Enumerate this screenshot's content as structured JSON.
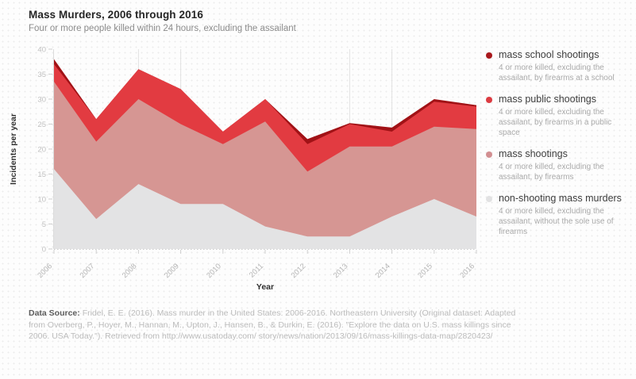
{
  "header": {
    "title": "Mass Murders, 2006 through 2016",
    "subtitle": "Four or more people killed within 24 hours, excluding the assailant"
  },
  "chart_data": {
    "type": "area",
    "stacked": true,
    "title": "Mass Murders, 2006 through 2016",
    "subtitle": "Four or more people killed within 24 hours, excluding the assailant",
    "x": [
      "2006",
      "2007",
      "2008",
      "2009",
      "2010",
      "2011",
      "2012",
      "2013",
      "2014",
      "2015",
      "2016"
    ],
    "xlabel": "Year",
    "ylabel": "Incidents per year",
    "ylim": [
      0,
      40
    ],
    "ytick_step": 5,
    "grid": "vertical-partial",
    "grid_vertical_at": [
      "2008",
      "2009",
      "2013",
      "2014"
    ],
    "legend_position": "right",
    "series": [
      {
        "name": "non-shooting mass murders",
        "color": "#e3e3e4",
        "values": [
          16,
          6,
          13,
          9,
          9,
          4.5,
          2.5,
          2.5,
          6.5,
          10,
          6.5
        ]
      },
      {
        "name": "mass shootings",
        "color": "#d69693",
        "values": [
          17.5,
          15.5,
          17,
          16,
          12,
          21,
          13,
          18,
          14,
          14.5,
          17.5
        ]
      },
      {
        "name": "mass public shootings",
        "color": "#e23b41",
        "values": [
          3.5,
          4.5,
          6,
          7,
          2.5,
          4.5,
          5.5,
          4.5,
          3,
          5,
          4.5
        ]
      },
      {
        "name": "mass school shootings",
        "color": "#a11216",
        "values": [
          1,
          0,
          0,
          0,
          0,
          0,
          1,
          0.2,
          0.8,
          0.5,
          0.3
        ]
      }
    ]
  },
  "legend": {
    "items": [
      {
        "title": "mass school shootings",
        "color": "#a8181c",
        "desc": "4 or more killed, excluding the assailant, by firearms at a school"
      },
      {
        "title": "mass public shootings",
        "color": "#dc3b41",
        "desc": "4 or more killed, excluding the assailant, by firearms in a public space"
      },
      {
        "title": "mass shootings",
        "color": "#d28f91",
        "desc": "4 or more killed, excluding the assailant, by firearms"
      },
      {
        "title": "non-shooting mass murders",
        "color": "#e2e2e3",
        "desc": "4 or more killed, excluding the assailant, without the sole use of firearms"
      }
    ]
  },
  "footer": {
    "label": "Data Source:",
    "text": " Fridel, E. E. (2016). Mass murder in the United States: 2006-2016. Northeastern University (Original dataset: Adapted from Overberg, P., Hoyer, M., Hannan, M., Upton, J., Hansen, B., & Durkin, E. (2016). \"Explore the data on U.S. mass killings since 2006. USA Today.\"). Retrieved from http://www.usatoday.com/ story/news/nation/2013/09/16/mass-killings-data-map/2820423/"
  }
}
